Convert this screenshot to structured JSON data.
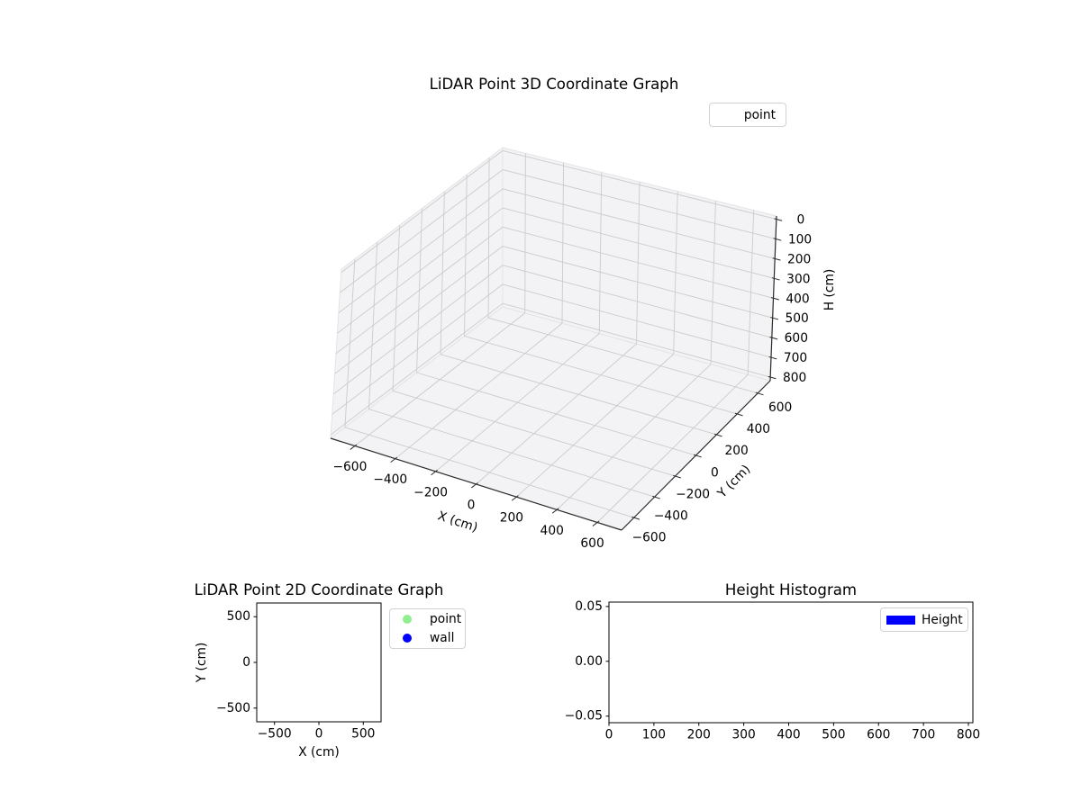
{
  "figure": {
    "background": "#ffffff",
    "text_color": "#000000"
  },
  "chart_data": [
    {
      "id": "lidar-3d",
      "type": "scatter3d",
      "title": "LiDAR Point 3D Coordinate Graph",
      "xlabel": "X (cm)",
      "ylabel": "Y (cm)",
      "zlabel": "H (cm)",
      "xlim": [
        -720,
        720
      ],
      "ylim": [
        -720,
        720
      ],
      "zlim": [
        -16,
        818
      ],
      "z_axis_inverted": true,
      "xticks": [
        -600,
        -400,
        -200,
        0,
        200,
        400,
        600
      ],
      "xtick_labels": [
        "−600",
        "−400",
        "−200",
        "0",
        "200",
        "400",
        "600"
      ],
      "yticks": [
        -600,
        -400,
        -200,
        0,
        200,
        400,
        600
      ],
      "ytick_labels": [
        "−600",
        "−400",
        "−200",
        "0",
        "200",
        "400",
        "600"
      ],
      "zticks": [
        0,
        100,
        200,
        300,
        400,
        500,
        600,
        700,
        800
      ],
      "ztick_labels": [
        "0",
        "100",
        "200",
        "300",
        "400",
        "500",
        "600",
        "700",
        "800"
      ],
      "grid": true,
      "grid_color": "#cbcbcb",
      "pane_color": "#f3f3f5",
      "pane_edge_color": "#e4e4e8",
      "axisline_color": "#2b2b2b",
      "legend": {
        "position": "upper right",
        "entries": [
          {
            "label": "point",
            "marker_visible": false
          }
        ]
      },
      "series": [
        {
          "name": "point",
          "points": []
        }
      ]
    },
    {
      "id": "lidar-2d",
      "type": "scatter",
      "title": "LiDAR Point 2D Coordinate Graph",
      "xlabel": "X (cm)",
      "ylabel": "Y (cm)",
      "xlim": [
        -700,
        700
      ],
      "ylim": [
        -650,
        650
      ],
      "xticks": [
        -500,
        0,
        500
      ],
      "xtick_labels": [
        "−500",
        "0",
        "500"
      ],
      "yticks": [
        500,
        0,
        -500
      ],
      "ytick_labels": [
        "500",
        "0",
        "−500"
      ],
      "grid": false,
      "spine_color": "#000000",
      "legend": {
        "position": "outside upper right",
        "entries": [
          {
            "label": "point",
            "color": "#90ee90",
            "marker": "circle"
          },
          {
            "label": "wall",
            "color": "#0000ff",
            "marker": "circle"
          }
        ]
      },
      "series": [
        {
          "name": "point",
          "color": "#90ee90",
          "points": []
        },
        {
          "name": "wall",
          "color": "#0000ff",
          "points": []
        }
      ]
    },
    {
      "id": "height-histogram",
      "type": "bar",
      "title": "Height Histogram",
      "xlabel": "",
      "ylabel": "",
      "xlim": [
        0,
        810
      ],
      "ylim": [
        -0.056,
        0.054
      ],
      "xticks": [
        0,
        100,
        200,
        300,
        400,
        500,
        600,
        700,
        800
      ],
      "xtick_labels": [
        "0",
        "100",
        "200",
        "300",
        "400",
        "500",
        "600",
        "700",
        "800"
      ],
      "yticks": [
        0.05,
        0,
        -0.05
      ],
      "ytick_labels": [
        "0.05",
        "0.00",
        "−0.05"
      ],
      "grid": false,
      "spine_color": "#000000",
      "bar_color": "#0000ff",
      "legend": {
        "position": "upper right",
        "entries": [
          {
            "label": "Height",
            "color": "#0000ff",
            "marker": "rect"
          }
        ]
      },
      "values": []
    }
  ]
}
